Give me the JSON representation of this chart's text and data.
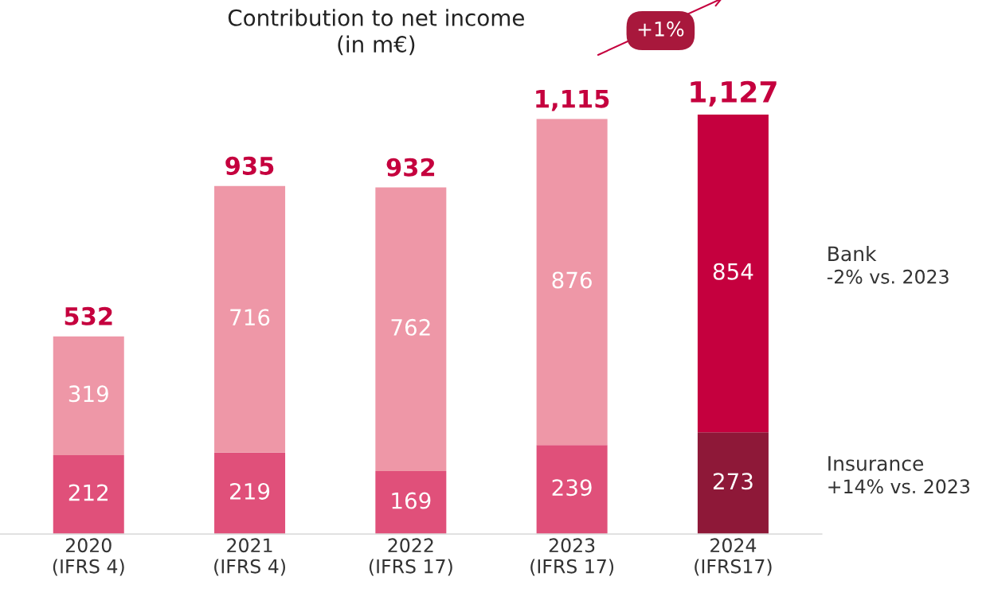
{
  "chart_data": {
    "type": "bar",
    "title": "Contribution to net income\n(in m€)",
    "categories": [
      "2020\n(IFRS 4)",
      "2021\n(IFRS 4)",
      "2022\n(IFRS 17)",
      "2023\n(IFRS 17)",
      "2024\n(IFRS17)"
    ],
    "stacked": true,
    "data_labels": true,
    "legend": false,
    "grid": false,
    "series": [
      {
        "name": "Insurance",
        "colors": [
          "#e0507a",
          "#e0507a",
          "#e0507a",
          "#e0507a",
          "#8e1838"
        ],
        "values": [
          212,
          219,
          169,
          239,
          273
        ]
      },
      {
        "name": "Bank",
        "colors": [
          "#ee97a7",
          "#ee97a7",
          "#ee97a7",
          "#ee97a7",
          "#c5003e"
        ],
        "values": [
          319,
          716,
          762,
          876,
          854
        ]
      }
    ],
    "totals": [
      "532",
      "935",
      "932",
      "1,115",
      "1,127"
    ],
    "annotations": [
      "+1%",
      "-2% vs. 2023",
      "+14% vs. 2023"
    ]
  }
}
